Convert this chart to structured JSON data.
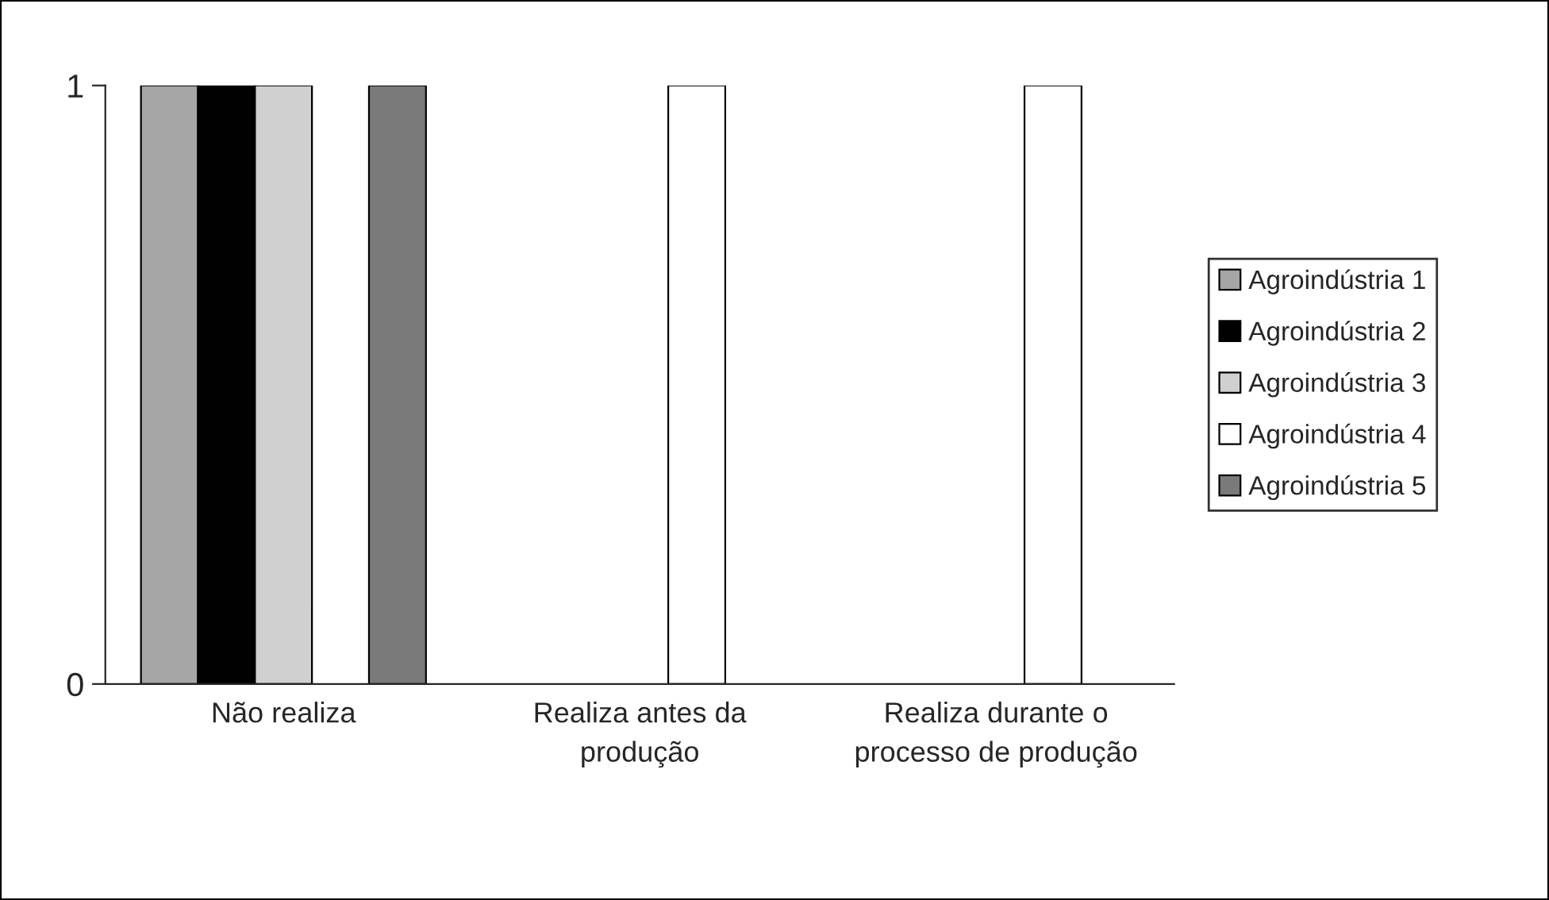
{
  "chart_data": {
    "type": "bar",
    "categories": [
      "Não realiza",
      "Realiza antes da produção",
      "Realiza durante o processo de produção"
    ],
    "series": [
      {
        "name": "Agroindústria 1",
        "color": "#a6a6a6",
        "values": [
          1,
          0,
          0
        ]
      },
      {
        "name": "Agroindústria 2",
        "color": "#000000",
        "values": [
          1,
          0,
          0
        ]
      },
      {
        "name": "Agroindústria 3",
        "color": "#d0d0d0",
        "values": [
          1,
          0,
          0
        ]
      },
      {
        "name": "Agroindústria 4",
        "color": "#ffffff",
        "values": [
          0,
          1,
          1
        ]
      },
      {
        "name": "Agroindústria 5",
        "color": "#7a7a7a",
        "values": [
          1,
          0,
          0
        ]
      }
    ],
    "ylim": [
      0,
      1
    ],
    "yticks": [
      0,
      1
    ],
    "grid": false,
    "legend": "right"
  }
}
